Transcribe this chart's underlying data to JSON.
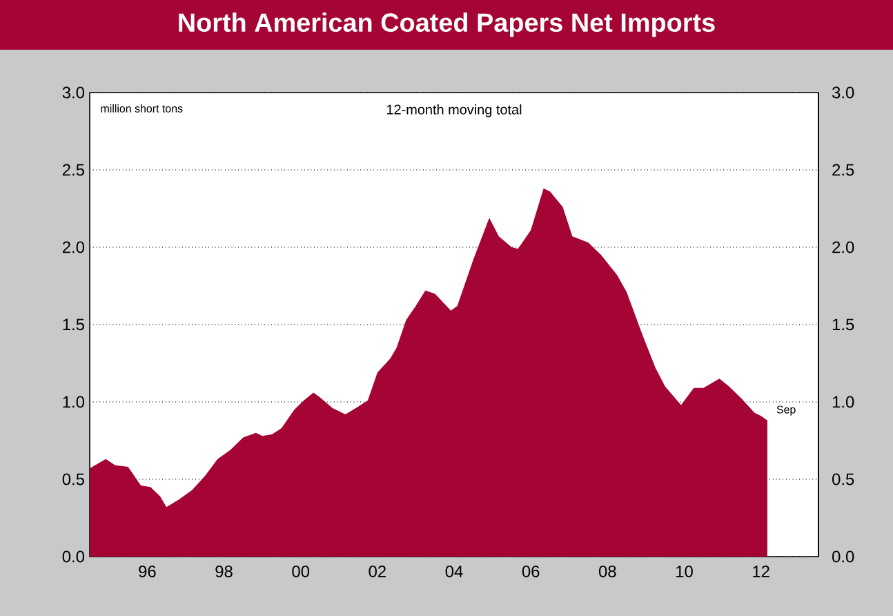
{
  "chart_data": {
    "type": "area",
    "title": "North American Coated Papers Net Imports",
    "subtitle": "12-month moving total",
    "ylabel": "million short tons",
    "color": "#a50534",
    "x": [
      "1995-01",
      "1995-06",
      "1995-09",
      "1996-01",
      "1996-05",
      "1996-08",
      "1996-11",
      "1997-01",
      "1997-05",
      "1997-09",
      "1998-01",
      "1998-05",
      "1998-09",
      "1999-01",
      "1999-05",
      "1999-07",
      "1999-10",
      "2000-01",
      "2000-05",
      "2000-08",
      "2000-11",
      "2001-01",
      "2001-05",
      "2001-09",
      "2002-01",
      "2002-04",
      "2002-07",
      "2002-11",
      "2003-01",
      "2003-04",
      "2003-07",
      "2003-10",
      "2004-01",
      "2004-06",
      "2004-08",
      "2005-01",
      "2005-06",
      "2005-09",
      "2006-01",
      "2006-03",
      "2006-07",
      "2006-11",
      "2007-01",
      "2007-05",
      "2007-08",
      "2008-01",
      "2008-05",
      "2008-10",
      "2009-01",
      "2009-06",
      "2009-10",
      "2010-01",
      "2010-06",
      "2010-10",
      "2011-01",
      "2011-06",
      "2011-09",
      "2012-01",
      "2012-05",
      "2012-07",
      "2012-09"
    ],
    "values": [
      0.57,
      0.63,
      0.59,
      0.58,
      0.46,
      0.45,
      0.39,
      0.32,
      0.37,
      0.43,
      0.52,
      0.63,
      0.69,
      0.77,
      0.8,
      0.78,
      0.79,
      0.83,
      0.95,
      1.01,
      1.06,
      1.03,
      0.96,
      0.92,
      0.97,
      1.01,
      1.19,
      1.28,
      1.35,
      1.53,
      1.62,
      1.72,
      1.7,
      1.59,
      1.62,
      1.92,
      2.19,
      2.07,
      2.0,
      1.99,
      2.11,
      2.38,
      2.36,
      2.26,
      2.07,
      2.03,
      1.95,
      1.82,
      1.71,
      1.43,
      1.22,
      1.1,
      0.98,
      1.09,
      1.09,
      1.15,
      1.1,
      1.02,
      0.93,
      0.91,
      0.88
    ],
    "xlim": [
      "1995-01",
      "2014-01"
    ],
    "xticks": [
      {
        "value": "1996-01",
        "label": null
      },
      {
        "value": "1997-01",
        "label": null
      },
      {
        "value": "1998-01",
        "label": null
      },
      {
        "value": "1999-01",
        "label": null
      },
      {
        "value": "2000-01",
        "label": null
      },
      {
        "value": "2001-01",
        "label": null
      },
      {
        "value": "2002-01",
        "label": null
      },
      {
        "value": "2003-01",
        "label": null
      },
      {
        "value": "2004-01",
        "label": null
      },
      {
        "value": "2005-01",
        "label": null
      },
      {
        "value": "2006-01",
        "label": null
      },
      {
        "value": "2007-01",
        "label": null
      },
      {
        "value": "2008-01",
        "label": null
      },
      {
        "value": "2009-01",
        "label": null
      },
      {
        "value": "2010-01",
        "label": null
      },
      {
        "value": "2011-01",
        "label": null
      },
      {
        "value": "2012-01",
        "label": null
      },
      {
        "value": "1996-07",
        "label": "96"
      },
      {
        "value": "1998-07",
        "label": "98"
      },
      {
        "value": "2000-07",
        "label": "00"
      },
      {
        "value": "2002-07",
        "label": "02"
      },
      {
        "value": "2004-07",
        "label": "04"
      },
      {
        "value": "2006-07",
        "label": "06"
      },
      {
        "value": "2008-07",
        "label": "08"
      },
      {
        "value": "2010-07",
        "label": "10"
      },
      {
        "value": "2012-07",
        "label": "12"
      }
    ],
    "ylim": [
      0,
      3
    ],
    "yticks": [
      {
        "value": 0,
        "label": "0.0"
      },
      {
        "value": 0.5,
        "label": "0.5"
      },
      {
        "value": 1,
        "label": "1.0"
      },
      {
        "value": 1.5,
        "label": "1.5"
      },
      {
        "value": 2,
        "label": "2.0"
      },
      {
        "value": 2.5,
        "label": "2.5"
      },
      {
        "value": 3,
        "label": "3.0"
      }
    ],
    "y2lim": [
      0,
      3
    ],
    "y2ticks": [
      {
        "value": 0,
        "label": "0.0"
      },
      {
        "value": 0.5,
        "label": "0.5"
      },
      {
        "value": 1,
        "label": "1.0"
      },
      {
        "value": 1.5,
        "label": "1.5"
      },
      {
        "value": 2,
        "label": "2.0"
      },
      {
        "value": 2.5,
        "label": "2.5"
      },
      {
        "value": 3,
        "label": "3.0"
      }
    ],
    "grid": "y",
    "annotations": [
      {
        "text": "Sep",
        "x": "2012-09",
        "y": 0.88
      }
    ]
  }
}
